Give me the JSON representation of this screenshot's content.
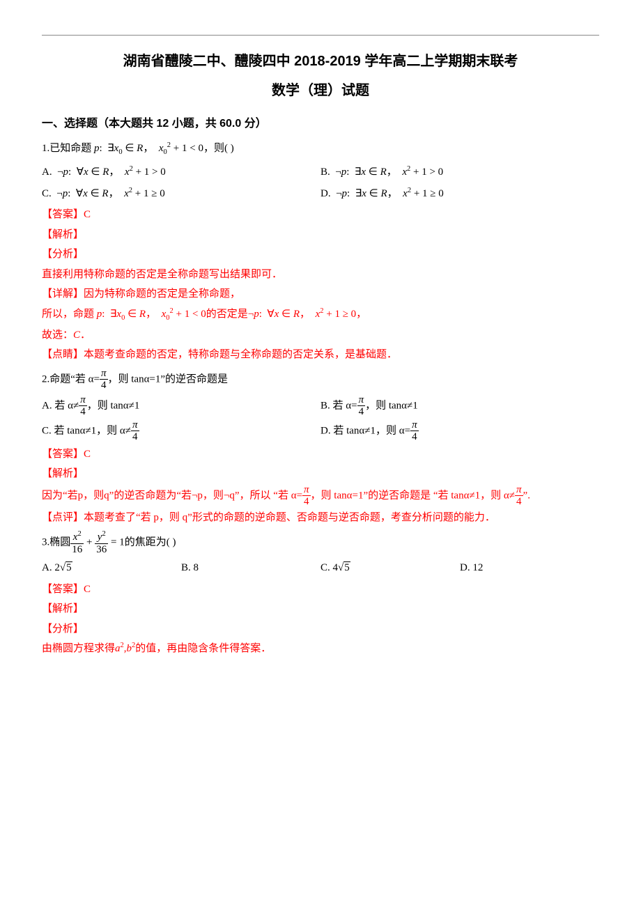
{
  "colors": {
    "text": "#000000",
    "answer": "#ff0000",
    "background": "#ffffff",
    "rule": "#888888"
  },
  "typography": {
    "body_font": "SimSun / 宋体",
    "heading_font": "SimHei / 黑体",
    "math_font": "Times New Roman",
    "body_size_pt": 11,
    "title_size_pt": 15,
    "section_size_pt": 12,
    "line_height": 1.9
  },
  "title_line1": "湖南省醴陵二中、醴陵四中 2018-2019 学年高二上学期期末联考",
  "title_line2": "数学（理）试题",
  "section1_header": "一、选择题（本大题共 12 小题，共 60.0 分）",
  "q1": {
    "stem_prefix": "1.已知命题 ",
    "stem_math": "p:  ∃x₀ ∈ R，  x₀² + 1 < 0，",
    "stem_suffix": "则(      )",
    "optA": "A.  ¬p:  ∀x ∈ R，  x² + 1 > 0",
    "optB": "B.  ¬p:  ∃x ∈ R，  x² + 1 > 0",
    "optC": "C.  ¬p:  ∀x ∈ R，  x² + 1 ≥ 0",
    "optD": "D.  ¬p:  ∃x ∈ R，  x² + 1 ≥ 0",
    "answer_label": "【答案】C",
    "jiexi": "【解析】",
    "fenxi": "【分析】",
    "fenxi_body": "直接利用特称命题的否定是全称命题写出结果即可．",
    "xiangjie_lead": "【详解】因为特称命题的否定是全称命题，",
    "xiangjie_body_pre": "所以，命题 ",
    "xiangjie_body_math1": "p:  ∃x₀ ∈ R，  x₀² + 1 < 0",
    "xiangjie_body_mid": "的否定是",
    "xiangjie_body_math2": "¬p:  ∀x ∈ R，  x² + 1 ≥ 0，",
    "guxuan": "故选：C．",
    "dianjing": "【点睛】本题考查命题的否定，特称命题与全称命题的否定关系，是基础题．"
  },
  "q2": {
    "stem_prefix": "2.命题“若 α=",
    "stem_frac_num": "π",
    "stem_frac_den": "4",
    "stem_suffix": "，则 tanα=1”的逆否命题是",
    "optA_pre": "A. 若 α≠",
    "optA_suf": "，则 tanα≠1",
    "optB_pre": "B. 若 α=",
    "optB_suf": "，则 tanα≠1",
    "optC_pre": "C. 若 tanα≠1，则 α≠",
    "optD_pre": "D. 若 tanα≠1，则 α=",
    "frac_num": "π",
    "frac_den": "4",
    "answer_label": "【答案】C",
    "jiexi": "【解析】",
    "body_pre": "因为“若p，则q”的逆否命题为“若¬p，则¬q”，所以 “若 α=",
    "body_mid": "，则 tanα=1”的逆否命题是 “若 tanα≠1，则 α≠",
    "body_suf": "”.",
    "dianping": "【点评】本题考查了“若 p，则 q”形式的命题的逆命题、否命题与逆否命题，考查分析问题的能力．"
  },
  "q3": {
    "stem_prefix": "3.椭圆",
    "num1": "x²",
    "den1": "16",
    "plus": " + ",
    "num2": "y²",
    "den2": "36",
    "eq": " = 1",
    "stem_suffix": "的焦距为(      )",
    "optA_pre": "A.  2",
    "optA_rad": "5",
    "optB": "B.  8",
    "optC_pre": "C.  4",
    "optC_rad": "5",
    "optD": "D.  12",
    "answer_label": "【答案】C",
    "jiexi": "【解析】",
    "fenxi": "【分析】",
    "fenxi_body_pre": "由椭圆方程求得",
    "fenxi_body_math": "a²,b²",
    "fenxi_body_suf": "的值，再由隐含条件得答案．"
  }
}
